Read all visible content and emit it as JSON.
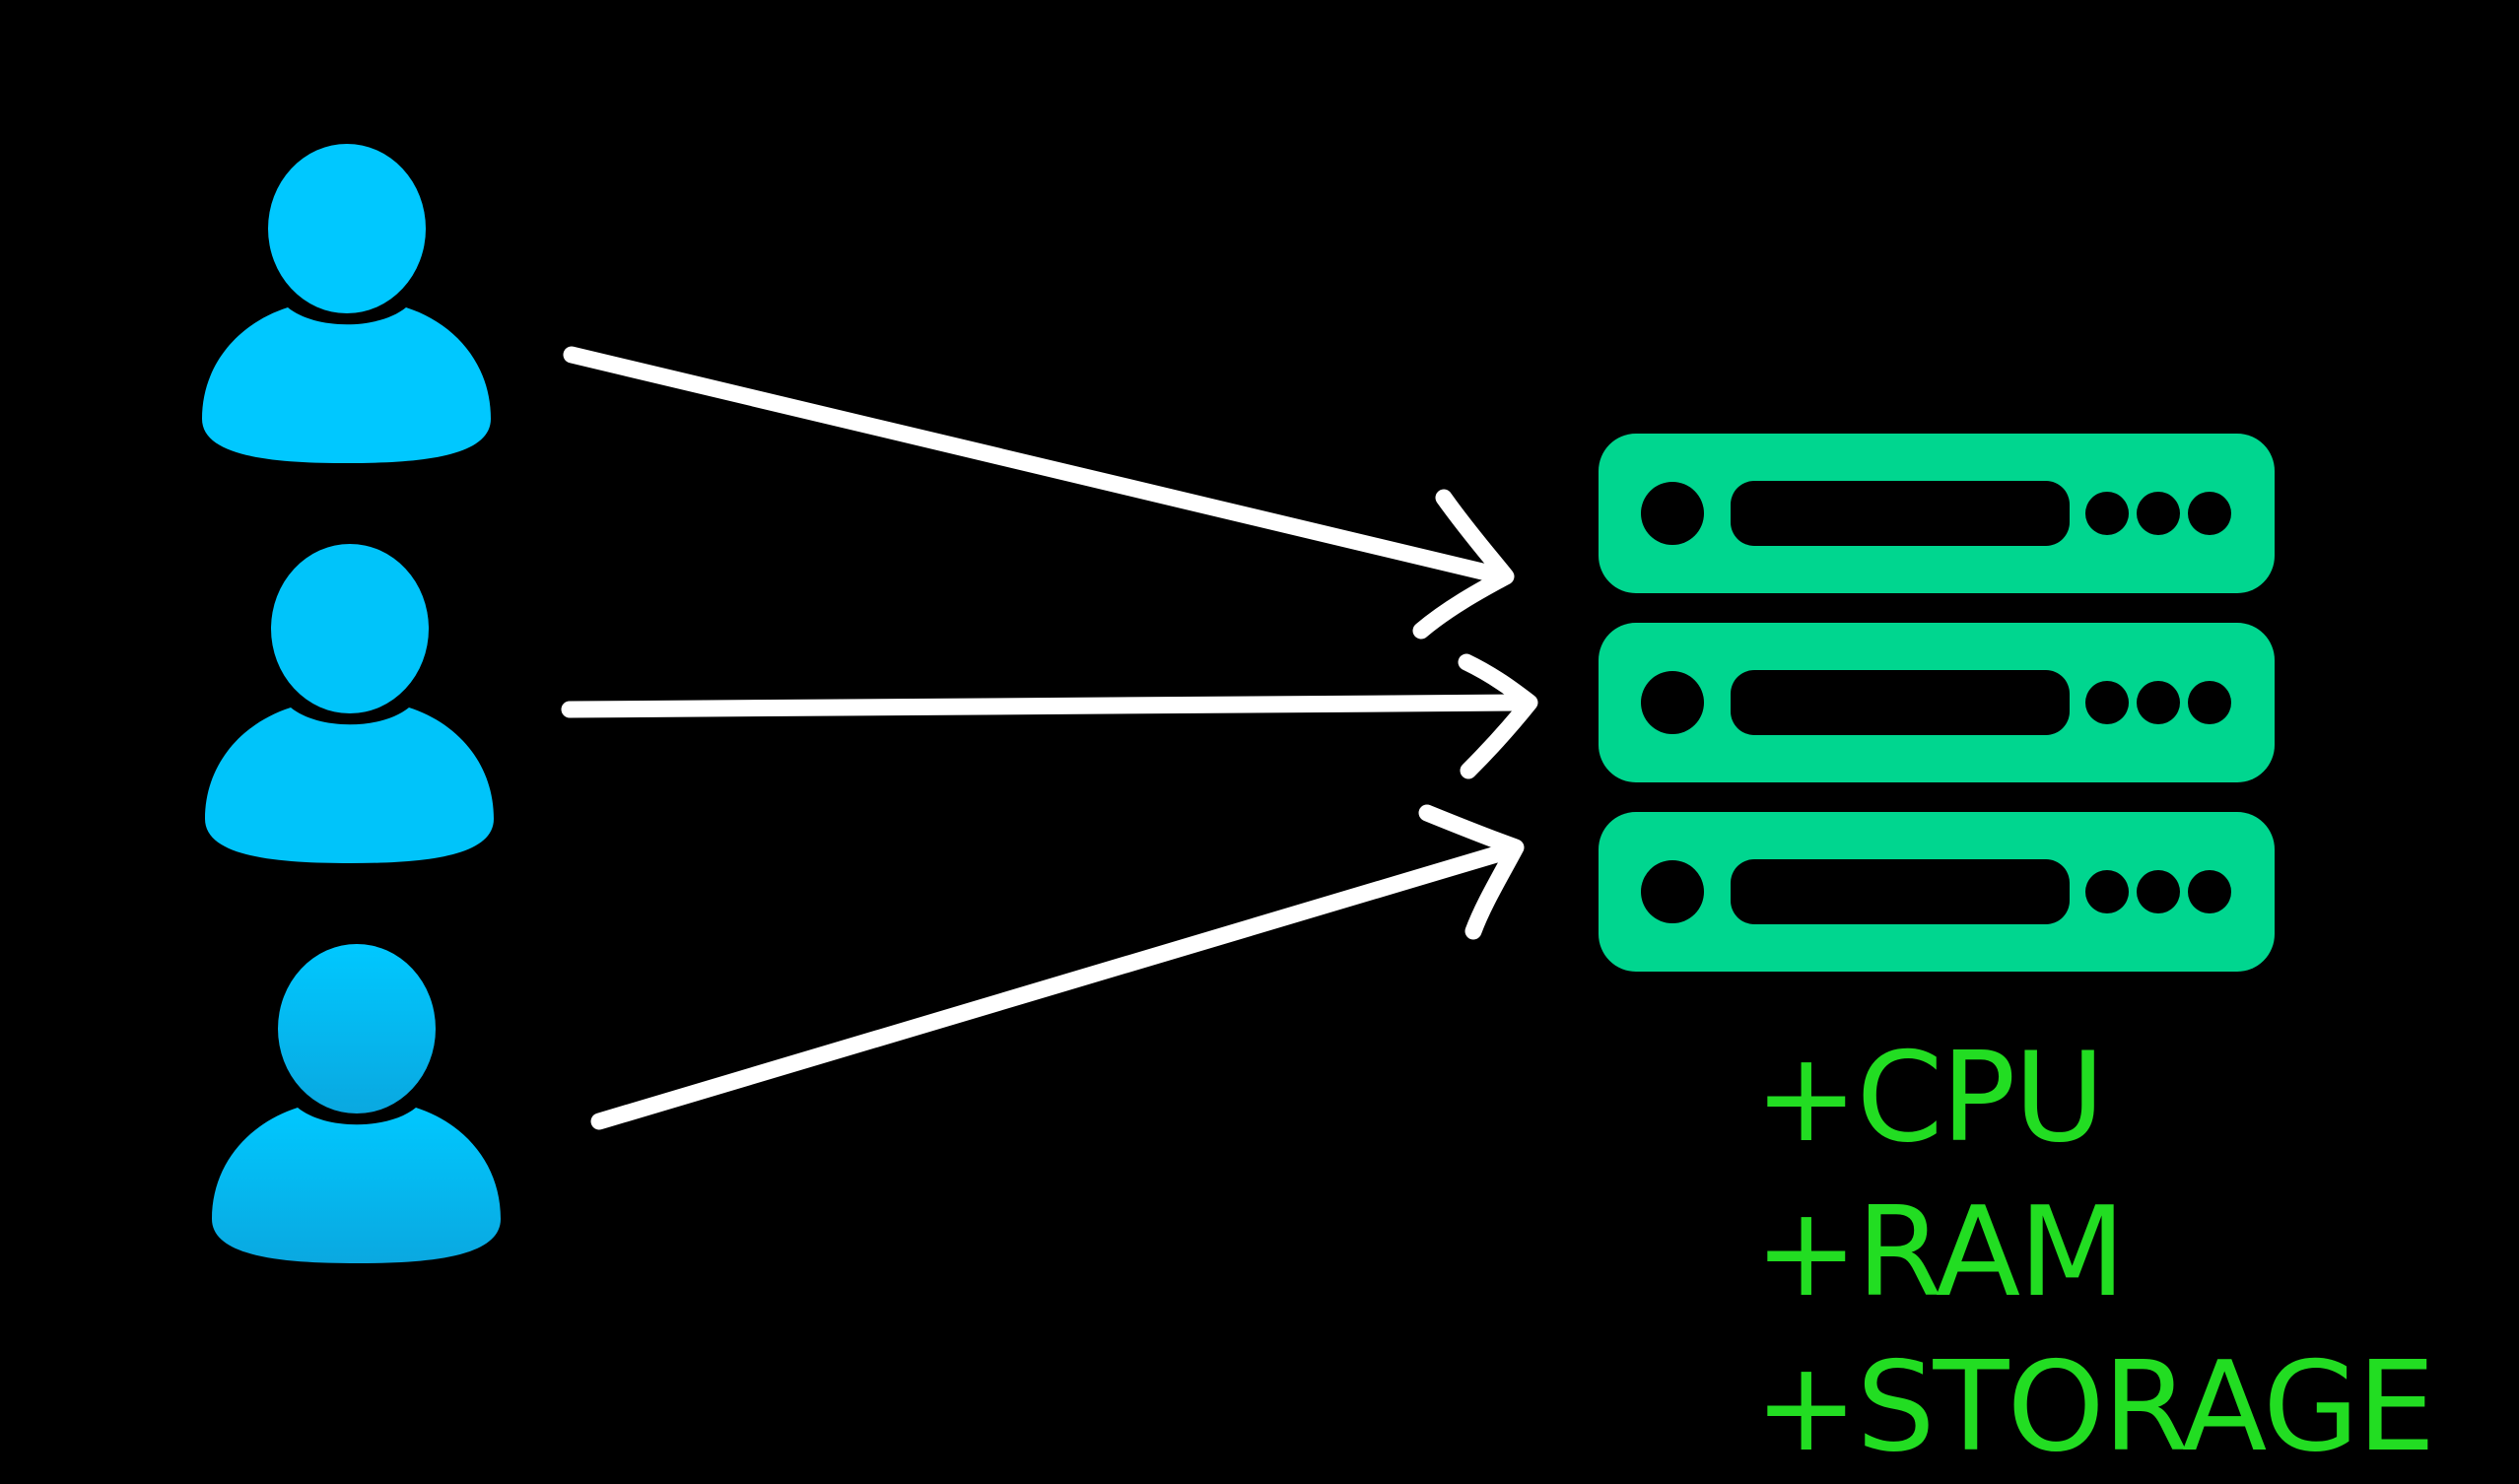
{
  "colors": {
    "background": "#000000",
    "user_top": "#00C8FF",
    "user_bottom": "#0AA8E0",
    "server": "#00D68F",
    "server_detail": "#000000",
    "arrow": "#FFFFFF",
    "resource_text": "#22DD22"
  },
  "icons": {
    "users": [
      "user-icon",
      "user-icon",
      "user-icon"
    ],
    "arrows": [
      "arrow-right-icon",
      "arrow-right-icon",
      "arrow-right-icon"
    ],
    "server": "server-rack-icon"
  },
  "resources": [
    {
      "label": "+CPU"
    },
    {
      "label": "+RAM"
    },
    {
      "label": "+STORAGE"
    }
  ]
}
